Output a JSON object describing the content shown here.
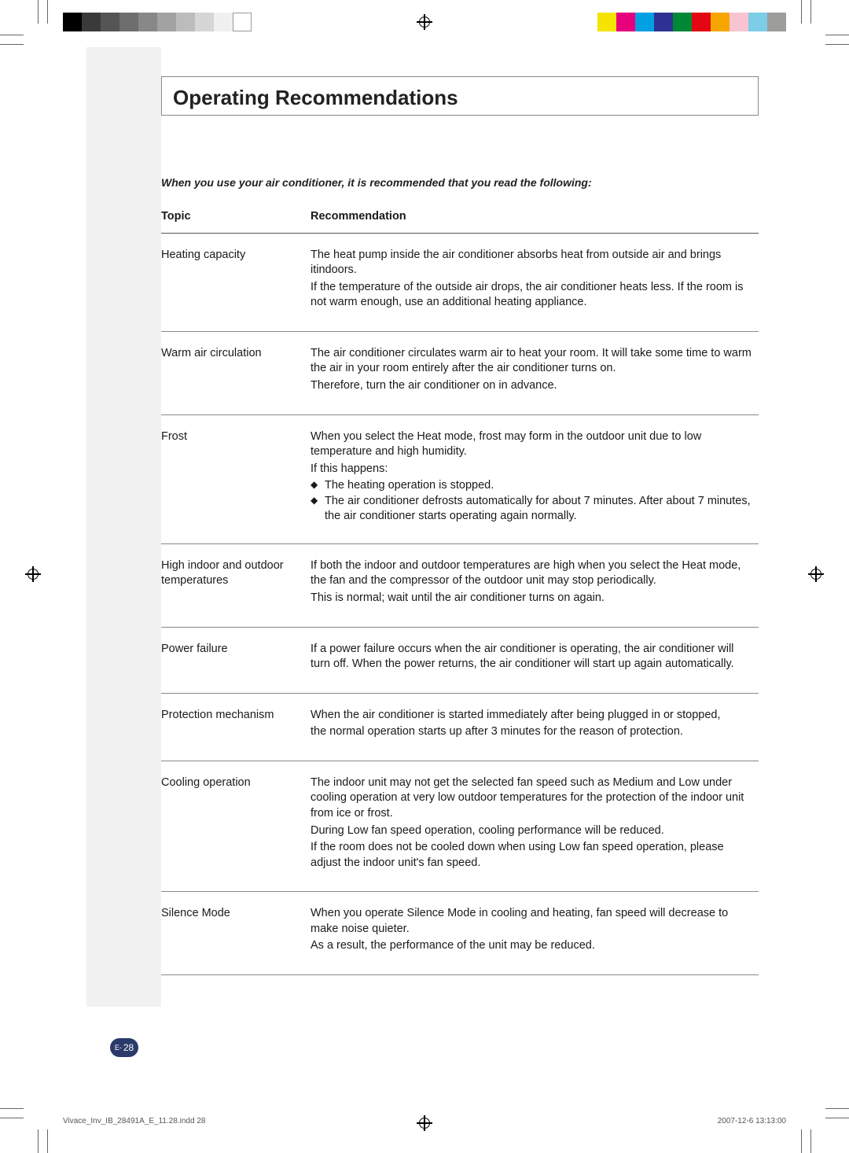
{
  "colors": {
    "left_bar_gray": [
      "#000000",
      "#3a3a3a",
      "#555555",
      "#6e6e6e",
      "#888888",
      "#a2a2a2",
      "#bcbcbc",
      "#d6d6d6",
      "#f0f0f0",
      "#ffffff"
    ],
    "right_bar": [
      "#f5e400",
      "#e6007e",
      "#00a0e3",
      "#2e3192",
      "#008837",
      "#e30613",
      "#f7a600",
      "#f9c4d2",
      "#7ecde6",
      "#9d9d9c"
    ]
  },
  "title": "Operating Recommendations",
  "intro": "When you use your air conditioner, it is recommended that you read the following:",
  "headers": {
    "topic": "Topic",
    "rec": "Recommendation"
  },
  "rows": [
    {
      "topic": "Heating capacity",
      "rec": [
        "The heat pump inside the air conditioner absorbs heat from outside air and brings itindoors.",
        "If the temperature of the outside air drops, the air conditioner heats less. If the room is not warm enough, use an additional heating appliance."
      ]
    },
    {
      "topic": "Warm air circulation",
      "rec": [
        "The air conditioner circulates warm air to heat your room. It will take some time to warm the air in your room entirely after the air conditioner turns on.",
        "Therefore, turn the air conditioner on in advance."
      ]
    },
    {
      "topic": "Frost",
      "rec": [
        "When you select the Heat mode, frost may form in the outdoor unit due to low temperature and high humidity.",
        "If this happens:",
        {
          "bullet": "The heating operation is stopped."
        },
        {
          "bullet": "The air conditioner defrosts automatically for about 7 minutes. After about 7 minutes, the air conditioner starts operating again normally."
        }
      ]
    },
    {
      "topic": "High indoor and outdoor temperatures",
      "rec": [
        "If both the indoor and outdoor temperatures are high when you select the Heat mode, the fan and the compressor of the outdoor unit may stop periodically.",
        "This is normal; wait until the air conditioner turns on again."
      ]
    },
    {
      "topic": "Power failure",
      "rec": [
        "If a power failure occurs when the air conditioner is operating, the air conditioner will turn off. When the power returns, the air conditioner will start up again automatically."
      ]
    },
    {
      "topic": "Protection mechanism",
      "rec": [
        "When the air conditioner is started immediately after being plugged in or stopped,",
        "the normal operation starts up after 3 minutes for the reason of protection."
      ]
    },
    {
      "topic": "Cooling operation",
      "rec": [
        "The indoor unit may not get the selected fan speed such as Medium and Low under cooling operation at very low outdoor temperatures for the protection of the indoor unit from ice or frost.",
        "During Low fan speed operation, cooling performance will be reduced.",
        "If the room does not be cooled down when using Low fan speed operation, please adjust the indoor unit's fan speed."
      ]
    },
    {
      "topic": "Silence Mode",
      "rec": [
        "When you operate Silence Mode in cooling and heating, fan speed will decrease to make noise quieter.",
        "As a result, the performance of the unit may be reduced."
      ]
    }
  ],
  "page_number_prefix": "E-",
  "page_number": "28",
  "footer_file": "Vivace_Inv_IB_28491A_E_11.28.indd   28",
  "footer_date": "2007-12-6   13:13:00"
}
